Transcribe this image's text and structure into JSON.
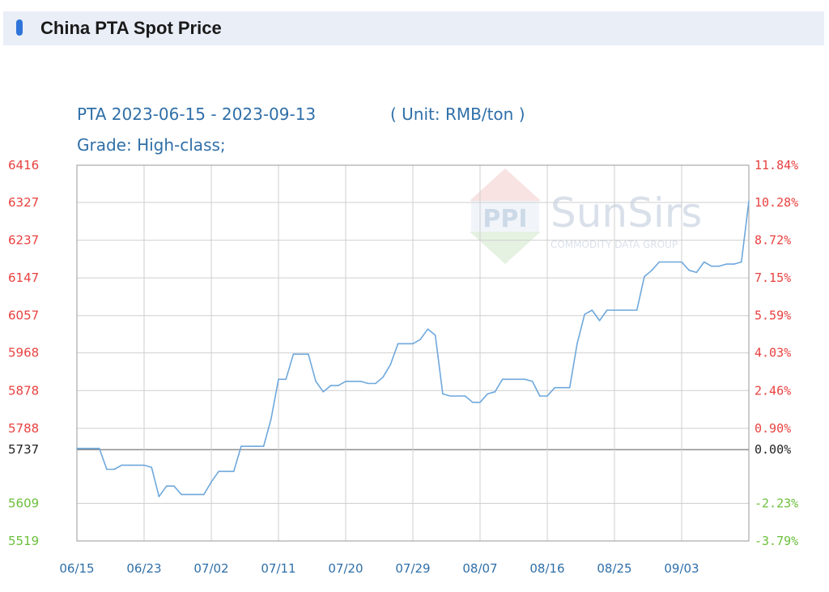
{
  "header": {
    "title": "China PTA Spot Price"
  },
  "colors": {
    "line": "#6fa8dc",
    "grid": "#cfcfcf",
    "baseline": "#909090",
    "frame": "#9a9a9a",
    "positive_label": "#e8413f",
    "negative_label": "#6bbf3a",
    "neutral_label": "#222222",
    "title": "#2f6fa8",
    "header_bg": "#e9eef7",
    "header_icon": "#2f74d8"
  },
  "watermark": {
    "brand": "SunSirs",
    "tagline": "COMMODITY DATA GROUP",
    "logo_text": "PPI"
  },
  "chart_data": {
    "type": "line",
    "title": "PTA 2023-06-15 - 2023-09-13",
    "unit": "( Unit: RMB/ton )",
    "subtitle": "Grade: High-class;",
    "base_value": 5737,
    "ylim": [
      5519,
      6416
    ],
    "y_ticks_left": [
      "6416",
      "6327",
      "6237",
      "6147",
      "6057",
      "5968",
      "5878",
      "5788",
      "5737",
      "5609",
      "5519"
    ],
    "y_ticks_right": [
      "11.84%",
      "10.28%",
      "8.72%",
      "7.15%",
      "5.59%",
      "4.03%",
      "2.46%",
      "0.90%",
      "0.00%",
      "-2.23%",
      "-3.79%"
    ],
    "x_ticks": [
      "06/15",
      "06/23",
      "07/02",
      "07/11",
      "07/20",
      "07/29",
      "08/07",
      "08/16",
      "08/25",
      "09/03"
    ],
    "grid": true,
    "x_range": [
      0,
      90
    ],
    "x": [
      0,
      3,
      4,
      5,
      6,
      7,
      9,
      10,
      11,
      12,
      13,
      14,
      15,
      16,
      17,
      18,
      19,
      20,
      21,
      22,
      23,
      24,
      25,
      26,
      27,
      28,
      29,
      30,
      31,
      32,
      33,
      34,
      35,
      36,
      37,
      38,
      39,
      40,
      41,
      42,
      43,
      44,
      45,
      46,
      47,
      48,
      49,
      50,
      51,
      52,
      53,
      54,
      55,
      56,
      57,
      58,
      59,
      60,
      61,
      62,
      63,
      64,
      65,
      66,
      67,
      68,
      69,
      70,
      71,
      72,
      73,
      74,
      75,
      76,
      77,
      78,
      79,
      80,
      81,
      82,
      83,
      84,
      85,
      86,
      87,
      88,
      89,
      90
    ],
    "values": [
      5740,
      5740,
      5690,
      5690,
      5700,
      5700,
      5700,
      5695,
      5625,
      5650,
      5650,
      5630,
      5630,
      5630,
      5630,
      5660,
      5685,
      5685,
      5685,
      5745,
      5745,
      5745,
      5745,
      5810,
      5905,
      5905,
      5965,
      5965,
      5965,
      5900,
      5875,
      5890,
      5890,
      5900,
      5900,
      5900,
      5895,
      5895,
      5910,
      5940,
      5990,
      5990,
      5990,
      6000,
      6025,
      6010,
      5870,
      5865,
      5865,
      5865,
      5850,
      5850,
      5870,
      5875,
      5905,
      5905,
      5905,
      5905,
      5900,
      5865,
      5865,
      5885,
      5885,
      5885,
      5990,
      6060,
      6070,
      6045,
      6070,
      6070,
      6070,
      6070,
      6070,
      6150,
      6165,
      6185,
      6185,
      6185,
      6185,
      6165,
      6160,
      6185,
      6175,
      6175,
      6180,
      6180,
      6185,
      6330
    ]
  }
}
